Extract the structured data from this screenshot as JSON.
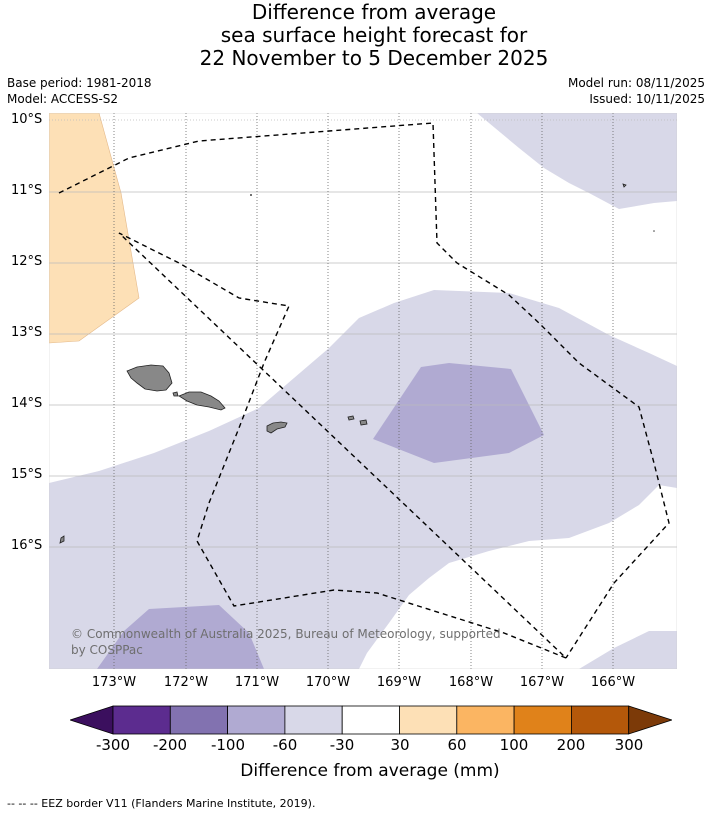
{
  "title": {
    "line1": "Difference from average",
    "line2": "sea surface height forecast for",
    "line3": "22 November to 5 December 2025"
  },
  "meta": {
    "base_period": "Base period: 1981-2018",
    "model": "Model: ACCESS-S2",
    "model_run": "Model run: 08/11/2025",
    "issued": "Issued: 10/11/2025"
  },
  "map": {
    "lat_labels": [
      "10°S",
      "11°S",
      "12°S",
      "13°S",
      "14°S",
      "15°S",
      "16°S"
    ],
    "lon_labels": [
      "173°W",
      "172°W",
      "171°W",
      "170°W",
      "169°W",
      "168°W",
      "167°W",
      "166°W"
    ],
    "copyright": "© Commonwealth of Australia 2025, Bureau of Meteorology, supported by COSPPac",
    "colors": {
      "pale_purple": "#d8d8e8",
      "mid_purple": "#b0aad2",
      "pale_orange": "#fde0b6",
      "land": "#888888"
    }
  },
  "colorbar": {
    "colors": [
      "#3b0f5e",
      "#5c2c8f",
      "#8272b0",
      "#b0aad2",
      "#d8d8e8",
      "#ffffff",
      "#fde0b6",
      "#fbb562",
      "#e0821a",
      "#b4580a",
      "#7c3a08"
    ],
    "ticks": [
      "-300",
      "-200",
      "-100",
      "-60",
      "-30",
      "30",
      "60",
      "100",
      "200",
      "300"
    ],
    "label": "Difference from average (mm)"
  },
  "footer": "--  --  -- EEZ border V11 (Flanders Marine Institute, 2019)."
}
